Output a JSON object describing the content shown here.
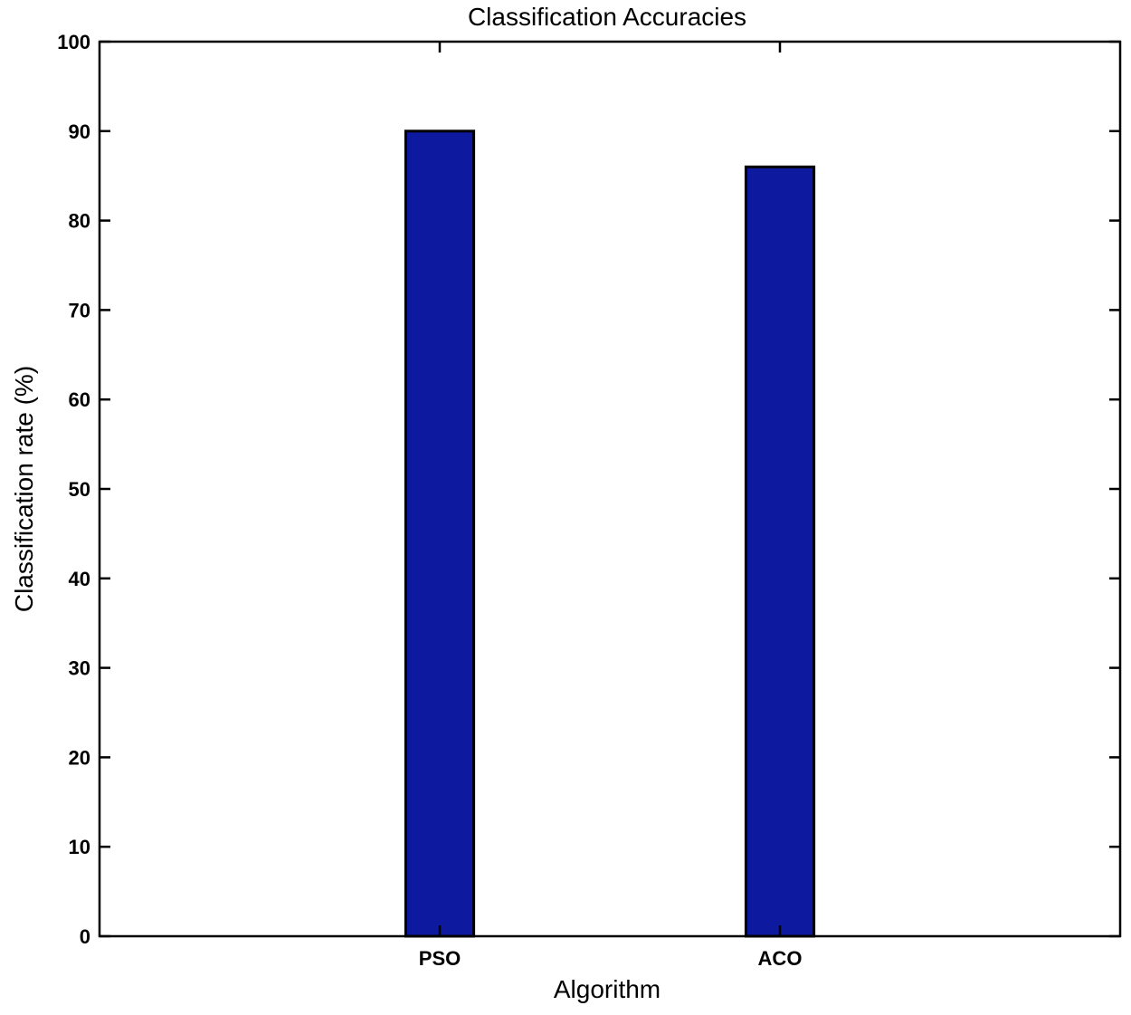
{
  "chart_data": {
    "type": "bar",
    "title": "Classification Accuracies",
    "xlabel": "Algorithm",
    "ylabel": "Classification rate (%)",
    "categories": [
      "PSO",
      "ACO"
    ],
    "values": [
      90,
      86
    ],
    "ylim": [
      0,
      100
    ],
    "yticks": [
      "0",
      "10",
      "20",
      "30",
      "40",
      "50",
      "60",
      "70",
      "80",
      "90",
      "100"
    ],
    "grid": false,
    "legend": "none",
    "bar_color": "#0d1aa0",
    "bar_edge_color": "#000000"
  }
}
